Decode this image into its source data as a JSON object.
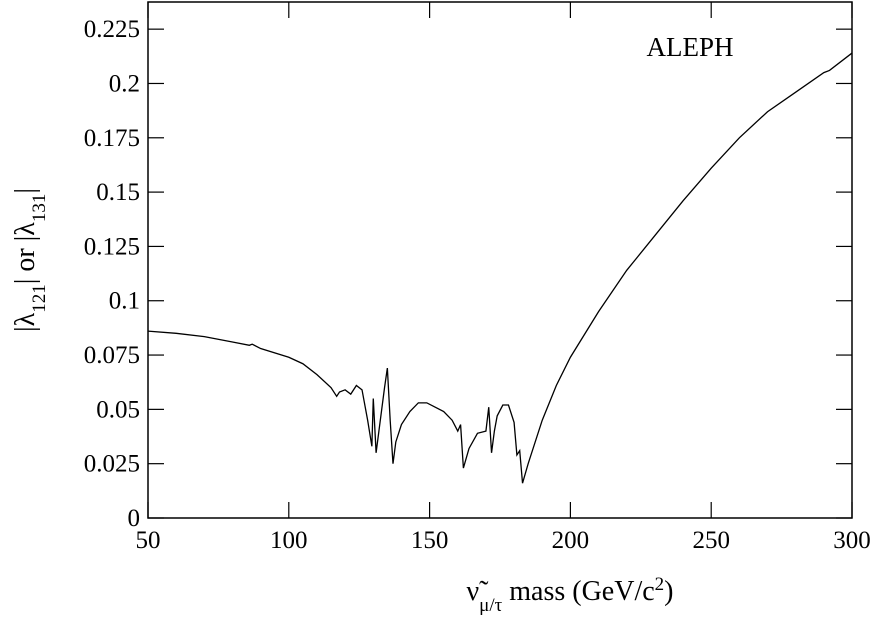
{
  "chart_data": {
    "type": "line",
    "annotation": "ALEPH",
    "y_label": [
      "|λ",
      "121",
      "| or |λ",
      "131",
      "|"
    ],
    "x_label": [
      "ν̃",
      "μ/τ",
      " mass (GeV/c",
      "2",
      ")"
    ],
    "xlim": [
      50,
      300
    ],
    "ylim": [
      0,
      0.2375
    ],
    "xticks": [
      50,
      100,
      150,
      200,
      250,
      300
    ],
    "yticks": [
      0,
      0.025,
      0.05,
      0.075,
      0.1,
      0.125,
      0.15,
      0.175,
      0.2,
      0.225
    ],
    "grid": false,
    "color": "#000000",
    "x": [
      50,
      60,
      70,
      80,
      86,
      87,
      90,
      100,
      105,
      110,
      115,
      117,
      118,
      120,
      122,
      124,
      126,
      128,
      129.5,
      130,
      131,
      132,
      134,
      135,
      136,
      137,
      138,
      140,
      143,
      146,
      149,
      152,
      155,
      158,
      160,
      161,
      162,
      164,
      167,
      170,
      171,
      172,
      173,
      174,
      176,
      178,
      180,
      181,
      182,
      183,
      185,
      190,
      195,
      200,
      210,
      220,
      230,
      240,
      250,
      260,
      270,
      280,
      290,
      292,
      300
    ],
    "values": [
      0.086,
      0.085,
      0.0835,
      0.081,
      0.0795,
      0.08,
      0.078,
      0.074,
      0.071,
      0.066,
      0.06,
      0.056,
      0.058,
      0.059,
      0.057,
      0.061,
      0.059,
      0.045,
      0.033,
      0.055,
      0.03,
      0.04,
      0.06,
      0.069,
      0.045,
      0.025,
      0.035,
      0.043,
      0.049,
      0.053,
      0.053,
      0.051,
      0.049,
      0.045,
      0.04,
      0.043,
      0.023,
      0.032,
      0.039,
      0.04,
      0.051,
      0.03,
      0.04,
      0.047,
      0.052,
      0.052,
      0.044,
      0.029,
      0.031,
      0.016,
      0.025,
      0.045,
      0.061,
      0.074,
      0.095,
      0.114,
      0.13,
      0.146,
      0.161,
      0.175,
      0.187,
      0.196,
      0.205,
      0.206,
      0.214
    ]
  }
}
